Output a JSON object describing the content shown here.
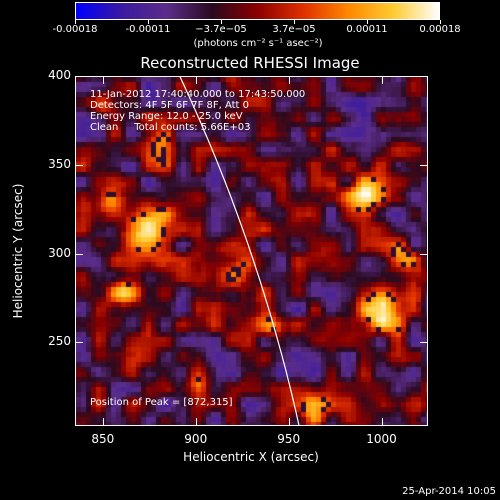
{
  "colorbar": {
    "ticks": [
      "-0.00018",
      "-0.00011",
      "−3.7e−05",
      "3.7e−05",
      "0.00011",
      "0.00018"
    ],
    "unit": "(photons cm⁻² s⁻¹ asec⁻²)",
    "stops": [
      "#0000ff",
      "#3a1aa0",
      "#5b2d8a",
      "#2a0a20",
      "#8b0000",
      "#e03000",
      "#ff8800",
      "#ffcc33",
      "#ffffff"
    ]
  },
  "chart_data": {
    "type": "heatmap",
    "title": "Reconstructed RHESSI Image",
    "xlabel": "Heliocentric X (arcsec)",
    "ylabel": "Heliocentric Y (arcsec)",
    "xlim": [
      835,
      1025
    ],
    "ylim": [
      203,
      400
    ],
    "xticks": [
      "850",
      "900",
      "950",
      "1000"
    ],
    "yticks": [
      "250",
      "300",
      "350",
      "400"
    ],
    "xtick_values": [
      850,
      900,
      950,
      1000
    ],
    "ytick_values": [
      250,
      300,
      350,
      400
    ],
    "annotations": [
      "11-Jan-2012 17:40:40.000 to 17:43:50.000",
      "Detectors: 4F 5F 6F 7F 8F, Att 0",
      "Energy Range: 12.0 - 25.0 keV",
      "Clean     Total counts: 5.66E+03"
    ],
    "peak_label": "Position of Peak = [872,315]",
    "peak": [
      872,
      315
    ],
    "limb_color": "#ffffff"
  },
  "footer": {
    "date": "25-Apr-2014 10:05"
  }
}
